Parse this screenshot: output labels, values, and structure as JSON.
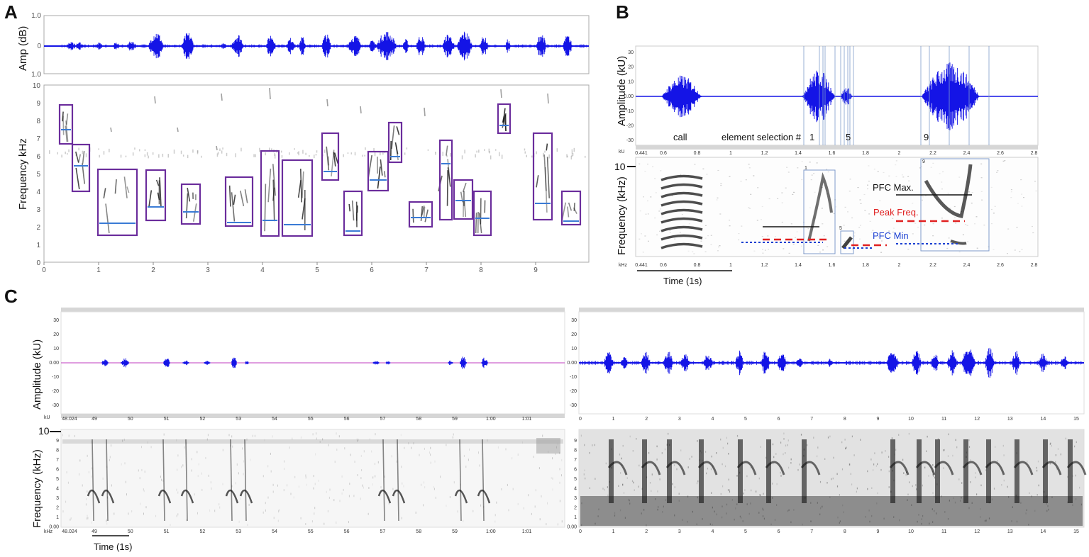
{
  "panels": {
    "a": {
      "letter": "A",
      "amp_label": "Amp (dB)",
      "amp_ticks": [
        "1.0",
        "0",
        "1.0"
      ],
      "freq_label": "Frequency kHz",
      "freq_ticks": [
        "10",
        "9",
        "8",
        "7",
        "6",
        "5",
        "4",
        "3",
        "2",
        "1",
        "0"
      ],
      "time_ticks": [
        "0",
        "1",
        "2",
        "3",
        "4",
        "5",
        "6",
        "7",
        "8",
        "9"
      ]
    },
    "b": {
      "letter": "B",
      "amp_label": "Amplitude (kU)",
      "amp_ticks": [
        "30",
        "20",
        "10",
        "0.00",
        "-10",
        "-20",
        "-30"
      ],
      "annotations": {
        "call": "call",
        "element": "element selection #",
        "n1": "1",
        "n5": "5",
        "n9": "9"
      },
      "freq_label": "Frequency (kHz)",
      "ten_label": "10",
      "time_ticks": [
        "0.441",
        "0.6",
        "0.8",
        "1",
        "1.2",
        "1.4",
        "1.6",
        "1.8",
        "2",
        "2.2",
        "2.4",
        "2.6",
        "2.8"
      ],
      "unit_top": "kU",
      "unit_bottom": "kHz",
      "pfc_max": "PFC Max.",
      "peak_freq": "Peak Freq.",
      "pfc_min": "PFC Min",
      "time_label": "Time (1s)",
      "box_labels": [
        "1",
        "5",
        "9"
      ]
    },
    "c": {
      "letter": "C",
      "amp_label": "Amplitude (kU)",
      "freq_label": "Frequency (kHz)",
      "ten_label": "10",
      "amp_ticks": [
        "30",
        "20",
        "10",
        "0.00",
        "-10",
        "-20",
        "-30"
      ],
      "freq_ticks": [
        "9",
        "8",
        "7",
        "6",
        "5",
        "4",
        "3",
        "2",
        "1",
        "0.00"
      ],
      "left_time_ticks": [
        "48.024",
        "49",
        "50",
        "51",
        "52",
        "53",
        "54",
        "55",
        "56",
        "57",
        "58",
        "59",
        "1:00",
        "1:01"
      ],
      "right_time_ticks": [
        "0",
        "1",
        "2",
        "3",
        "4",
        "5",
        "6",
        "7",
        "8",
        "9",
        "10",
        "11",
        "12",
        "13",
        "14",
        "15"
      ],
      "unit_top": "kU",
      "unit_bottom": "kHz",
      "time_label": "Time (1s)"
    }
  },
  "colors": {
    "waveform": "#1414e6",
    "box_purple": "#6b2d9c",
    "peak_blue": "#3a7bd5",
    "peak_red": "#e02020",
    "pfc_blue": "#1a3fd1",
    "sel_box": "#7f9ccc"
  }
}
